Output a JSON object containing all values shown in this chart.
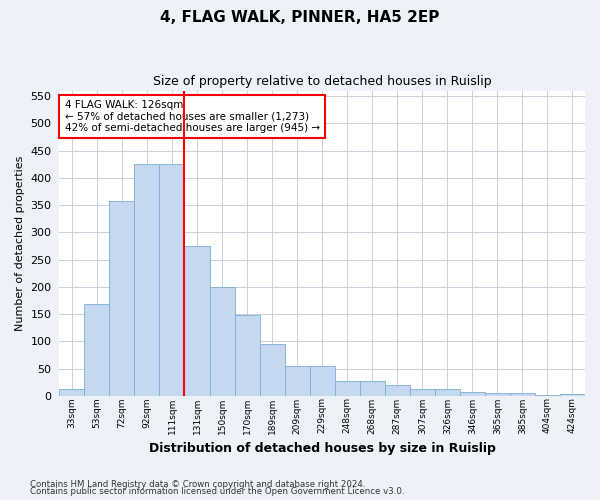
{
  "title1": "4, FLAG WALK, PINNER, HA5 2EP",
  "title2": "Size of property relative to detached houses in Ruislip",
  "xlabel": "Distribution of detached houses by size in Ruislip",
  "ylabel": "Number of detached properties",
  "categories": [
    "33sqm",
    "53sqm",
    "72sqm",
    "92sqm",
    "111sqm",
    "131sqm",
    "150sqm",
    "170sqm",
    "189sqm",
    "209sqm",
    "229sqm",
    "248sqm",
    "268sqm",
    "287sqm",
    "307sqm",
    "326sqm",
    "346sqm",
    "365sqm",
    "385sqm",
    "404sqm",
    "424sqm"
  ],
  "values": [
    12,
    168,
    357,
    425,
    425,
    275,
    200,
    148,
    95,
    55,
    55,
    27,
    27,
    20,
    12,
    12,
    7,
    5,
    5,
    2,
    3
  ],
  "bar_color": "#c5d8f0",
  "bar_edge_color": "#7bafd4",
  "vline_x_idx": 4.5,
  "vline_color": "red",
  "annotation_line1": "4 FLAG WALK: 126sqm",
  "annotation_line2": "← 57% of detached houses are smaller (1,273)",
  "annotation_line3": "42% of semi-detached houses are larger (945) →",
  "annotation_box_color": "white",
  "annotation_box_edge_color": "red",
  "ylim": [
    0,
    560
  ],
  "yticks": [
    0,
    50,
    100,
    150,
    200,
    250,
    300,
    350,
    400,
    450,
    500,
    550
  ],
  "footnote1": "Contains HM Land Registry data © Crown copyright and database right 2024.",
  "footnote2": "Contains public sector information licensed under the Open Government Licence v3.0.",
  "background_color": "#eef2f8",
  "plot_bg_color": "#ffffff",
  "grid_color": "#c8d0dc"
}
